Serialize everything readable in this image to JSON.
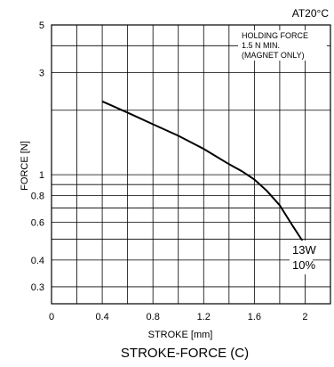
{
  "chart_data": {
    "type": "line",
    "title": "STROKE-FORCE (C)",
    "condition": "AT20°C",
    "xlabel": "STROKE [mm]",
    "ylabel": "FORCE [N]",
    "xlim": [
      0,
      2.2
    ],
    "ylim": [
      0.25,
      5
    ],
    "yscale": "log",
    "grid": true,
    "x_ticks": [
      "0",
      "0.4",
      "0.8",
      "1.2",
      "1.6",
      "2"
    ],
    "x_tick_values": [
      0,
      0.4,
      0.8,
      1.2,
      1.6,
      2.0
    ],
    "y_ticks": [
      "0.3",
      "0.4",
      "0.6",
      "0.8",
      "1",
      "3",
      "5"
    ],
    "y_tick_values": [
      0.3,
      0.4,
      0.6,
      0.8,
      1,
      3,
      5
    ],
    "y_grid_values": [
      0.3,
      0.4,
      0.5,
      0.6,
      0.7,
      0.8,
      0.9,
      1,
      2,
      3,
      4,
      5
    ],
    "annotation": [
      "HOLDING FORCE",
      "1.5 N MIN.",
      "(MAGNET ONLY)"
    ],
    "series": [
      {
        "name": "13W 10%",
        "label_lines": [
          "13W",
          "10%"
        ],
        "x": [
          0.4,
          0.6,
          0.8,
          1.0,
          1.2,
          1.4,
          1.5,
          1.6,
          1.7,
          1.8,
          1.9,
          2.0
        ],
        "y": [
          2.2,
          1.95,
          1.72,
          1.52,
          1.32,
          1.12,
          1.04,
          0.95,
          0.84,
          0.72,
          0.58,
          0.47
        ]
      }
    ]
  }
}
